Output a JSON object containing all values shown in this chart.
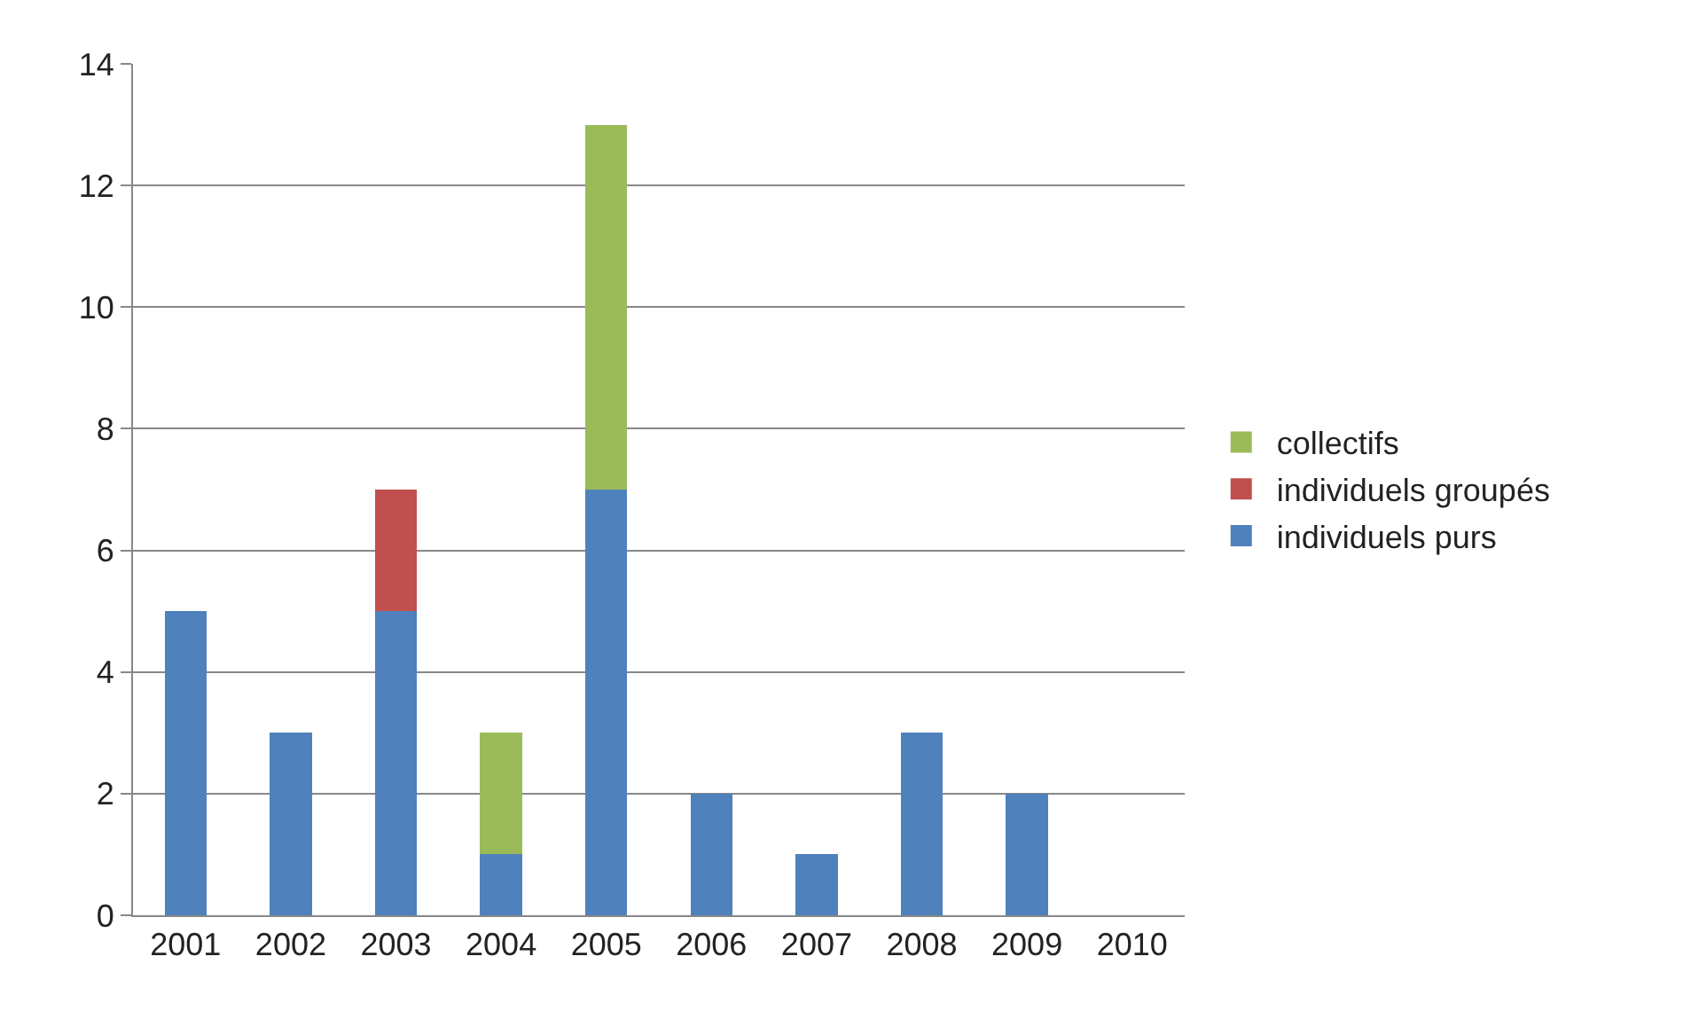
{
  "chart_data": {
    "type": "bar",
    "stacked": true,
    "categories": [
      "2001",
      "2002",
      "2003",
      "2004",
      "2005",
      "2006",
      "2007",
      "2008",
      "2009",
      "2010"
    ],
    "series": [
      {
        "name": "individuels purs",
        "color": "#4f81bd",
        "values": [
          5,
          3,
          5,
          1,
          7,
          2,
          1,
          3,
          2,
          null
        ]
      },
      {
        "name": "individuels groupés",
        "color": "#c0504d",
        "values": [
          null,
          null,
          2,
          null,
          null,
          null,
          null,
          null,
          null,
          null
        ]
      },
      {
        "name": "collectifs",
        "color": "#9bbb59",
        "values": [
          null,
          null,
          null,
          2,
          6,
          null,
          null,
          null,
          null,
          null
        ]
      }
    ],
    "ylim": [
      0,
      14
    ],
    "yticks": [
      0,
      2,
      4,
      6,
      8,
      10,
      12,
      14
    ],
    "grid": "y",
    "legend": "right"
  }
}
